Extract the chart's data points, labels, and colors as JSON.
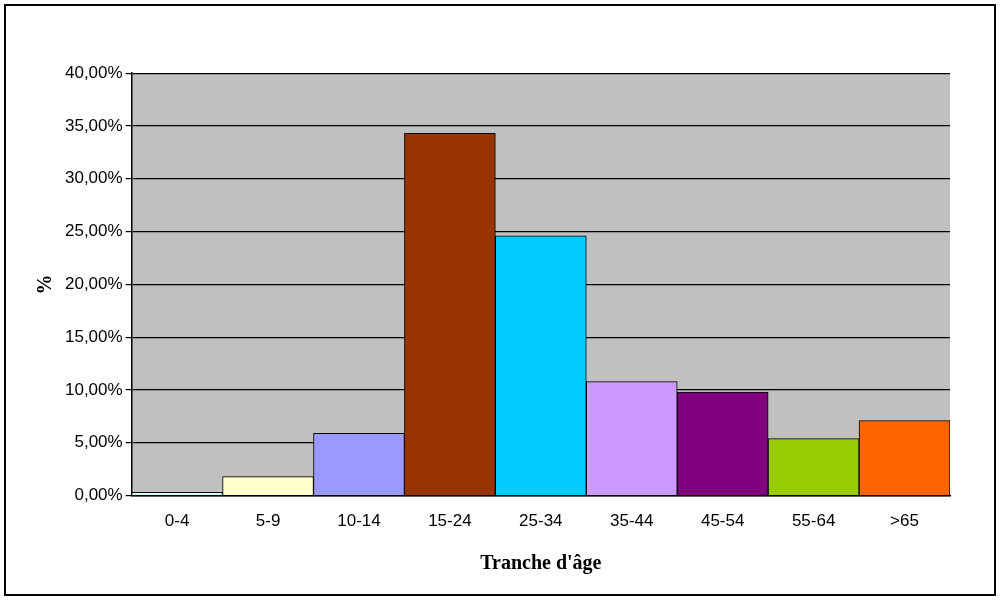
{
  "chart_data": {
    "type": "bar",
    "xlabel": "Tranche d'âge",
    "ylabel": "%",
    "categories": [
      "0-4",
      "5-9",
      "10-14",
      "15-24",
      "25-34",
      "35-44",
      "45-54",
      "55-64",
      ">65"
    ],
    "values": [
      0.3,
      1.8,
      5.9,
      34.3,
      24.6,
      10.8,
      9.8,
      5.4,
      7.1
    ],
    "colors": [
      "#ccffff",
      "#ffffcc",
      "#9999ff",
      "#993300",
      "#00ccff",
      "#cc99ff",
      "#800080",
      "#99cc00",
      "#ff6600"
    ],
    "ylim": [
      0,
      40
    ],
    "yticks": [
      {
        "value": 0,
        "label": "0,00%"
      },
      {
        "value": 5,
        "label": "5,00%"
      },
      {
        "value": 10,
        "label": "10,00%"
      },
      {
        "value": 15,
        "label": "15,00%"
      },
      {
        "value": 20,
        "label": "20,00%"
      },
      {
        "value": 25,
        "label": "25,00%"
      },
      {
        "value": 30,
        "label": "30,00%"
      },
      {
        "value": 35,
        "label": "35,00%"
      },
      {
        "value": 40,
        "label": "40,00%"
      }
    ],
    "grid": "y",
    "legend": false
  }
}
